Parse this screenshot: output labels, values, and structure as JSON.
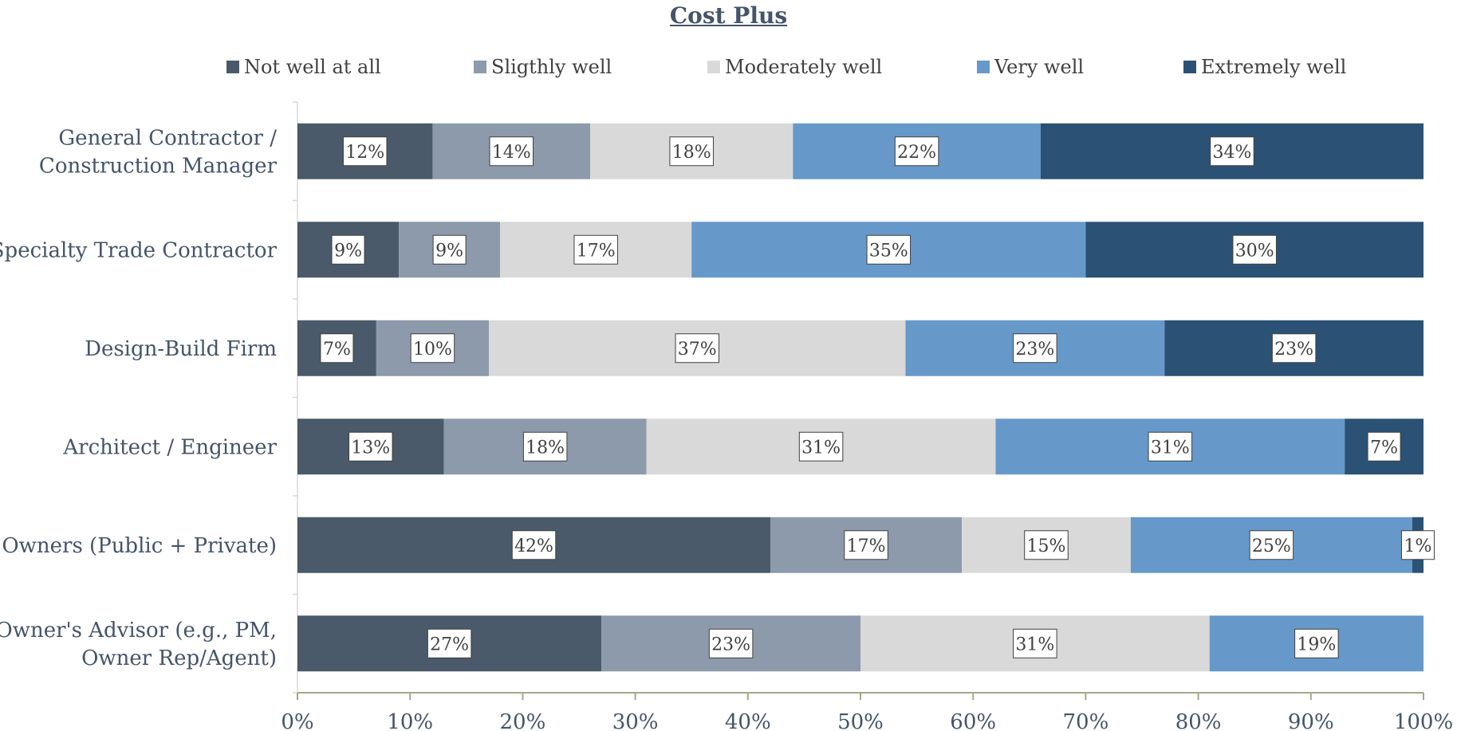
{
  "chart_data": {
    "type": "bar",
    "orientation": "horizontal",
    "stacked": "percent",
    "title": "Cost Plus",
    "categories": [
      "General Contractor / Construction Manager",
      "Specialty Trade Contractor",
      "Design-Build Firm",
      "Architect / Engineer",
      "Owners (Public + Private)",
      "Owner's Advisor (e.g., PM, Owner Rep/Agent)"
    ],
    "category_lines": [
      [
        "General Contractor /",
        "Construction Manager"
      ],
      [
        "Specialty Trade Contractor"
      ],
      [
        "Design-Build Firm"
      ],
      [
        "Architect / Engineer"
      ],
      [
        "Owners (Public + Private)"
      ],
      [
        "Owner's Advisor (e.g., PM,",
        "Owner Rep/Agent)"
      ]
    ],
    "series": [
      {
        "name": "Not well at all",
        "color": "#4a5a6a",
        "values": [
          12,
          9,
          7,
          13,
          42,
          27
        ]
      },
      {
        "name": "Sligthly well",
        "color": "#8c9aab",
        "values": [
          14,
          9,
          10,
          18,
          17,
          23
        ]
      },
      {
        "name": "Moderately well",
        "color": "#d9d9d9",
        "values": [
          18,
          17,
          37,
          31,
          15,
          31
        ]
      },
      {
        "name": "Very well",
        "color": "#6699c9",
        "values": [
          22,
          35,
          23,
          31,
          25,
          19
        ]
      },
      {
        "name": "Extremely well",
        "color": "#2b5275",
        "values": [
          34,
          30,
          23,
          7,
          1,
          0
        ]
      }
    ],
    "xlim": [
      0,
      100
    ],
    "x_ticks": [
      "0%",
      "10%",
      "20%",
      "30%",
      "40%",
      "50%",
      "60%",
      "70%",
      "80%",
      "90%",
      "100%"
    ],
    "legend_position": "top",
    "grid": false,
    "data_labels": true
  }
}
